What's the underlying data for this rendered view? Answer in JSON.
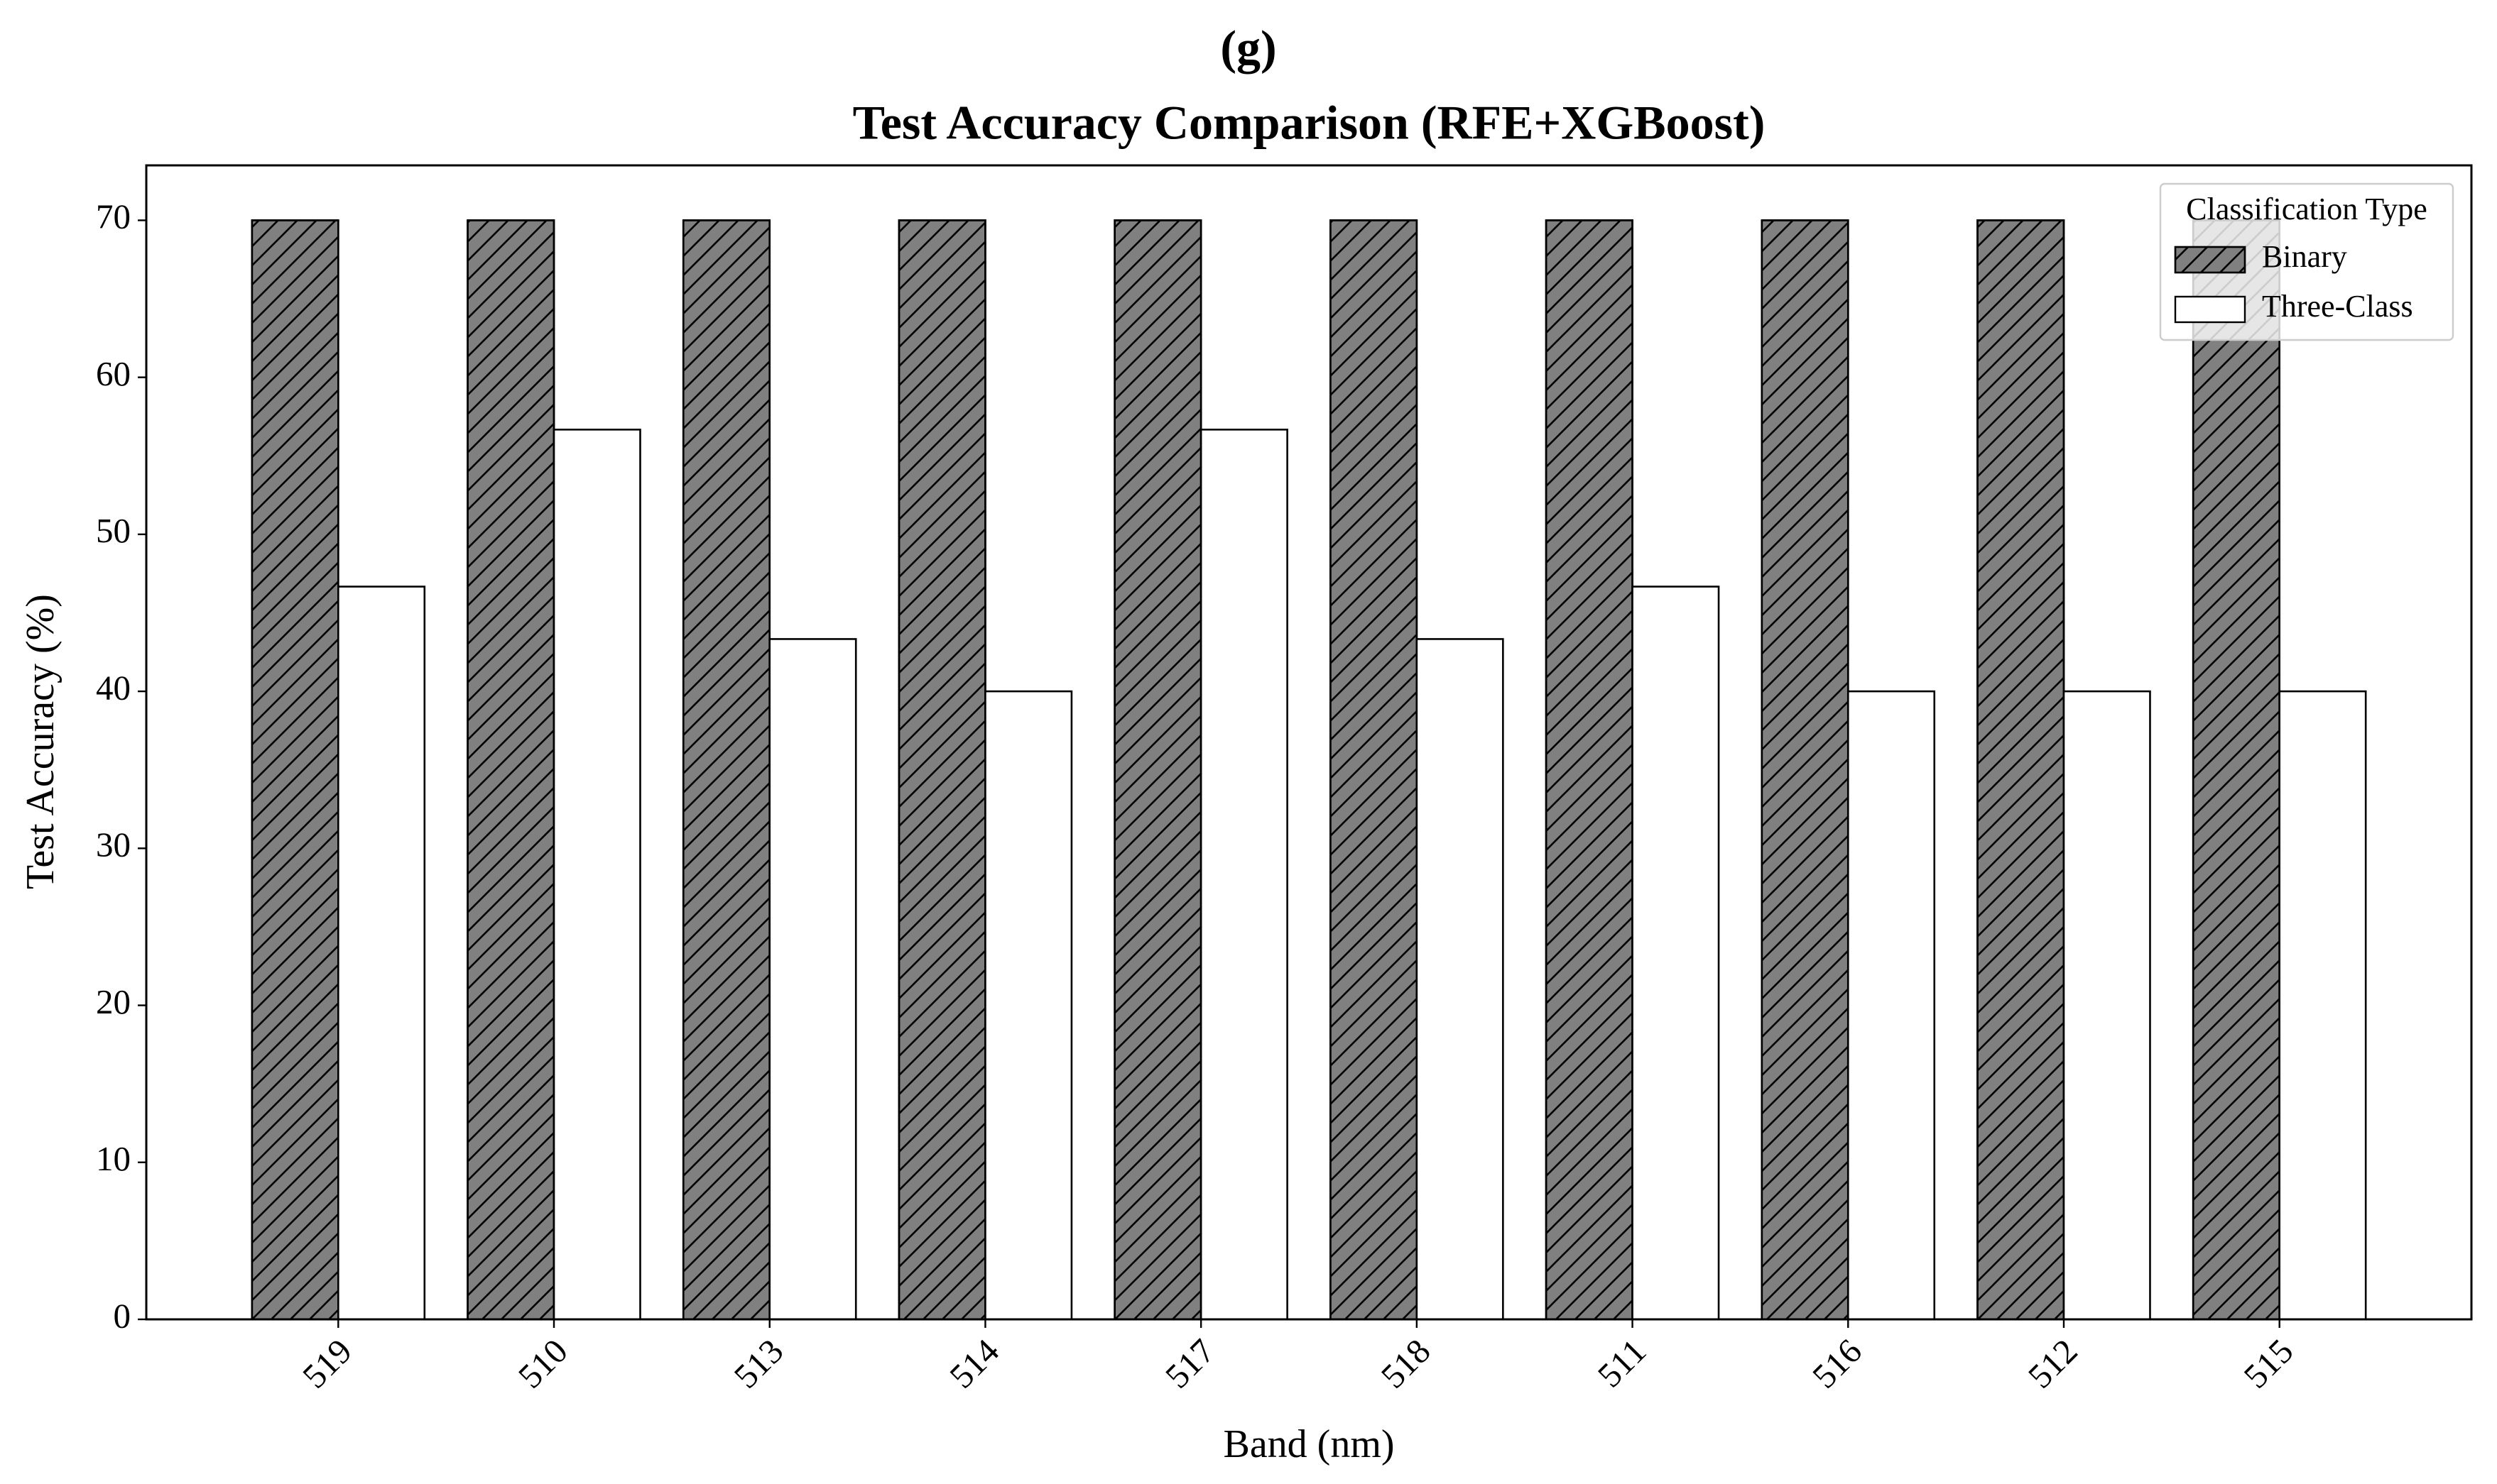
{
  "chart_data": {
    "type": "bar",
    "panel_label": "(g)",
    "title": "Test Accuracy Comparison (RFE+XGBoost)",
    "x_label": "Band (nm)",
    "y_label": "Test Accuracy (%)",
    "categories": [
      "519",
      "510",
      "513",
      "514",
      "517",
      "518",
      "511",
      "516",
      "512",
      "515"
    ],
    "series": [
      {
        "name": "Binary",
        "color": "#808080",
        "hatch": "//",
        "values": [
          70,
          70,
          70,
          70,
          70,
          70,
          70,
          70,
          70,
          70
        ]
      },
      {
        "name": "Three-Class",
        "color": "#ffffff",
        "values": [
          46.67,
          56.67,
          43.33,
          40,
          56.67,
          43.33,
          46.67,
          40,
          40,
          40
        ]
      }
    ],
    "ylim": [
      0,
      73.5
    ],
    "yticks": [
      0,
      10,
      20,
      30,
      40,
      50,
      60,
      70
    ],
    "legend_title": "Classification Type",
    "legend": "upper right",
    "grid": false
  }
}
